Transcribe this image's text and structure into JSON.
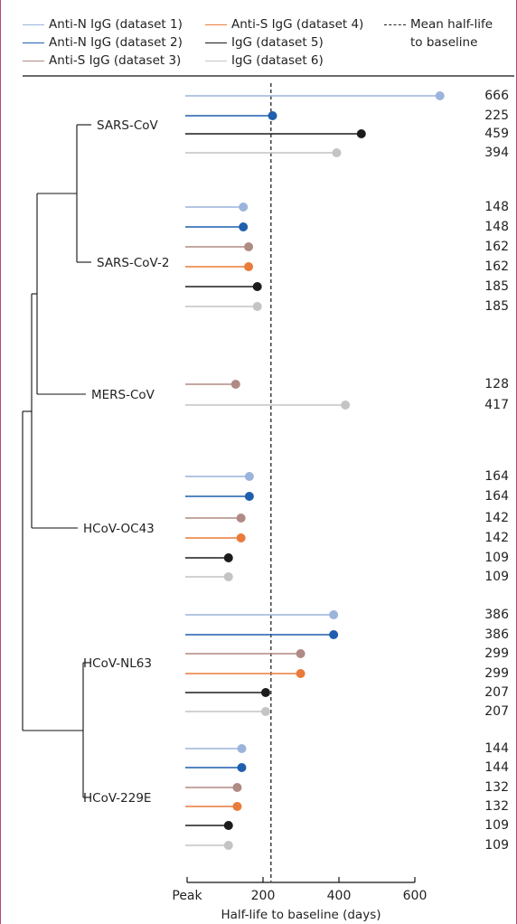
{
  "colors": {
    "border": "#b5487a",
    "anti_n_ds1": "#9bb4dc",
    "anti_n_ds2": "#1f5fae",
    "anti_s_ds3": "#b08a84",
    "anti_s_ds4": "#ea7b3a",
    "igg_ds5": "#1c1c1c",
    "igg_ds6": "#c4c4c4"
  },
  "legend": {
    "items": [
      {
        "label": "Anti-N IgG (dataset 1)",
        "color": "#9bb4dc"
      },
      {
        "label": "Anti-N IgG (dataset 2)",
        "color": "#1f5fae"
      },
      {
        "label": "Anti-S IgG (dataset 3)",
        "color": "#b08a84"
      },
      {
        "label": "Anti-S IgG (dataset 4)",
        "color": "#ea7b3a"
      },
      {
        "label": "IgG (dataset 5)",
        "color": "#1c1c1c"
      },
      {
        "label": "IgG (dataset 6)",
        "color": "#c4c4c4"
      }
    ],
    "mean_label_line1": "Mean half-life",
    "mean_label_line2": "to baseline"
  },
  "chart_data": {
    "type": "lollipop",
    "xlabel": "Half-life to baseline (days)",
    "xlim": [
      0,
      600
    ],
    "xticks": [
      {
        "value": 0,
        "label": "Peak"
      },
      {
        "value": 200,
        "label": "200"
      },
      {
        "value": 400,
        "label": "400"
      },
      {
        "value": 600,
        "label": "600"
      }
    ],
    "mean_half_life": 221,
    "groups": [
      {
        "name": "SARS-CoV",
        "points": [
          {
            "series": "Anti-N IgG (dataset 1)",
            "value": 666
          },
          {
            "series": "Anti-N IgG (dataset 2)",
            "value": 225
          },
          {
            "series": "IgG (dataset 5)",
            "value": 459
          },
          {
            "series": "IgG (dataset 6)",
            "value": 394
          }
        ]
      },
      {
        "name": "SARS-CoV-2",
        "points": [
          {
            "series": "Anti-N IgG (dataset 1)",
            "value": 148
          },
          {
            "series": "Anti-N IgG (dataset 2)",
            "value": 148
          },
          {
            "series": "Anti-S IgG (dataset 3)",
            "value": 162
          },
          {
            "series": "Anti-S IgG (dataset 4)",
            "value": 162
          },
          {
            "series": "IgG (dataset 5)",
            "value": 185
          },
          {
            "series": "IgG (dataset 6)",
            "value": 185
          }
        ]
      },
      {
        "name": "MERS-CoV",
        "points": [
          {
            "series": "Anti-S IgG (dataset 3)",
            "value": 128
          },
          {
            "series": "IgG (dataset 6)",
            "value": 417
          }
        ]
      },
      {
        "name": "HCoV-OC43",
        "points": [
          {
            "series": "Anti-N IgG (dataset 1)",
            "value": 164
          },
          {
            "series": "Anti-N IgG (dataset 2)",
            "value": 164
          },
          {
            "series": "Anti-S IgG (dataset 3)",
            "value": 142
          },
          {
            "series": "Anti-S IgG (dataset 4)",
            "value": 142
          },
          {
            "series": "IgG (dataset 5)",
            "value": 109
          },
          {
            "series": "IgG (dataset 6)",
            "value": 109
          }
        ]
      },
      {
        "name": "HCoV-NL63",
        "points": [
          {
            "series": "Anti-N IgG (dataset 1)",
            "value": 386
          },
          {
            "series": "Anti-N IgG (dataset 2)",
            "value": 386
          },
          {
            "series": "Anti-S IgG (dataset 3)",
            "value": 299
          },
          {
            "series": "Anti-S IgG (dataset 4)",
            "value": 299
          },
          {
            "series": "IgG (dataset 5)",
            "value": 207
          },
          {
            "series": "IgG (dataset 6)",
            "value": 207
          }
        ]
      },
      {
        "name": "HCoV-229E",
        "points": [
          {
            "series": "Anti-N IgG (dataset 1)",
            "value": 144
          },
          {
            "series": "Anti-N IgG (dataset 2)",
            "value": 144
          },
          {
            "series": "Anti-S IgG (dataset 3)",
            "value": 132
          },
          {
            "series": "Anti-S IgG (dataset 4)",
            "value": 132
          },
          {
            "series": "IgG (dataset 5)",
            "value": 109
          },
          {
            "series": "IgG (dataset 6)",
            "value": 109
          }
        ]
      }
    ]
  }
}
